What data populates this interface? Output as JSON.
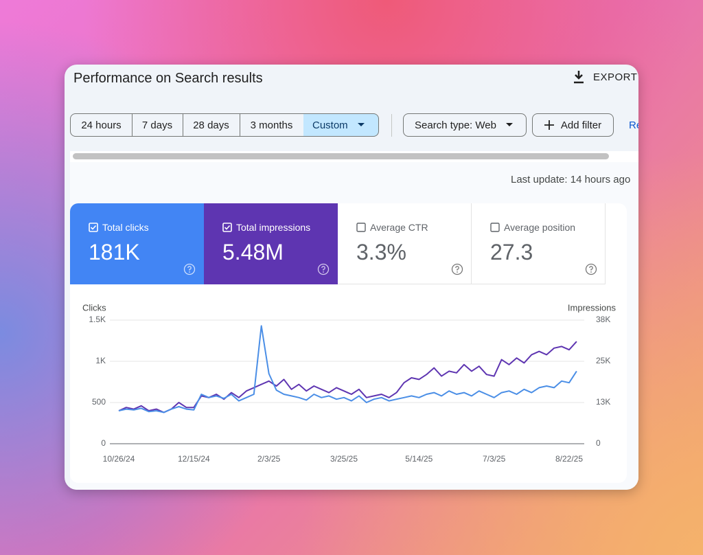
{
  "header": {
    "title": "Performance on Search results",
    "export": "EXPORT"
  },
  "filters": {
    "ranges": [
      "24 hours",
      "7 days",
      "28 days",
      "3 months",
      "Custom"
    ],
    "search_type": "Search type: Web",
    "add_filter": "Add filter",
    "reset": "Re"
  },
  "last_update": "Last update: 14 hours ago",
  "metrics": [
    {
      "label": "Total clicks",
      "value": "181K"
    },
    {
      "label": "Total impressions",
      "value": "5.48M"
    },
    {
      "label": "Average CTR",
      "value": "3.3%"
    },
    {
      "label": "Average position",
      "value": "27.3"
    }
  ],
  "chart_data": {
    "type": "line",
    "y_label": "Clicks",
    "y2_label": "Impressions",
    "x": [
      "10/26/24",
      "10/31/24",
      "11/5/24",
      "11/10/24",
      "11/15/24",
      "11/20/24",
      "11/25/24",
      "11/30/24",
      "12/5/24",
      "12/10/24",
      "12/15/24",
      "12/20/24",
      "12/25/24",
      "12/30/24",
      "1/4/25",
      "1/9/25",
      "1/14/25",
      "1/19/25",
      "1/24/25",
      "1/29/25",
      "2/3/25",
      "2/8/25",
      "2/13/25",
      "2/18/25",
      "2/23/25",
      "2/28/25",
      "3/5/25",
      "3/10/25",
      "3/15/25",
      "3/20/25",
      "3/25/25",
      "3/30/25",
      "4/4/25",
      "4/9/25",
      "4/14/25",
      "4/19/25",
      "4/24/25",
      "4/29/25",
      "5/4/25",
      "5/9/25",
      "5/14/25",
      "5/19/25",
      "5/24/25",
      "5/29/25",
      "6/3/25",
      "6/8/25",
      "6/13/25",
      "6/18/25",
      "6/23/25",
      "6/28/25",
      "7/3/25",
      "7/8/25",
      "7/13/25",
      "7/18/25",
      "7/23/25",
      "7/28/25",
      "8/2/25",
      "8/7/25",
      "8/12/25",
      "8/17/25",
      "8/22/25",
      "8/27/25"
    ],
    "series": [
      {
        "name": "Clicks",
        "color": "#4a8ee6",
        "values": [
          400,
          420,
          410,
          430,
          390,
          400,
          380,
          420,
          450,
          420,
          410,
          600,
          560,
          580,
          550,
          600,
          520,
          560,
          600,
          1430,
          850,
          650,
          600,
          580,
          560,
          530,
          600,
          560,
          580,
          540,
          560,
          520,
          580,
          500,
          540,
          560,
          520,
          540,
          560,
          580,
          560,
          600,
          620,
          580,
          640,
          600,
          620,
          580,
          640,
          600,
          560,
          620,
          640,
          600,
          660,
          620,
          680,
          700,
          680,
          760,
          740,
          880
        ]
      },
      {
        "name": "Impressions",
        "color": "#5e35b1",
        "axis": "y2",
        "values": [
          10000,
          11000,
          10500,
          11500,
          10000,
          10500,
          9500,
          10500,
          12500,
          11000,
          11000,
          14500,
          14000,
          15000,
          13500,
          15500,
          14000,
          16000,
          17000,
          18000,
          19000,
          17500,
          19500,
          16500,
          18000,
          16000,
          17500,
          16500,
          15500,
          17000,
          16000,
          15000,
          16500,
          14000,
          14500,
          15000,
          14000,
          15500,
          18500,
          20000,
          19500,
          21000,
          23000,
          20500,
          22000,
          21500,
          24000,
          22000,
          23500,
          21000,
          20500,
          25500,
          24000,
          26000,
          24500,
          27000,
          28000,
          27000,
          29000,
          29500,
          28500,
          31000
        ]
      }
    ],
    "ylim": [
      0,
      1500
    ],
    "yticks": [
      0,
      500,
      {
        "value": 1000,
        "label": "1K"
      },
      {
        "value": 1500,
        "label": "1.5K"
      }
    ],
    "y2lim": [
      0,
      37500
    ],
    "y2ticks": [
      0,
      {
        "value": 12500,
        "label": "13K"
      },
      {
        "value": 25000,
        "label": "25K"
      },
      {
        "value": 37500,
        "label": "38K"
      }
    ],
    "xticks": [
      "10/26/24",
      "12/15/24",
      "2/3/25",
      "3/25/25",
      "5/14/25",
      "7/3/25",
      "8/22/25"
    ],
    "grid": true
  }
}
